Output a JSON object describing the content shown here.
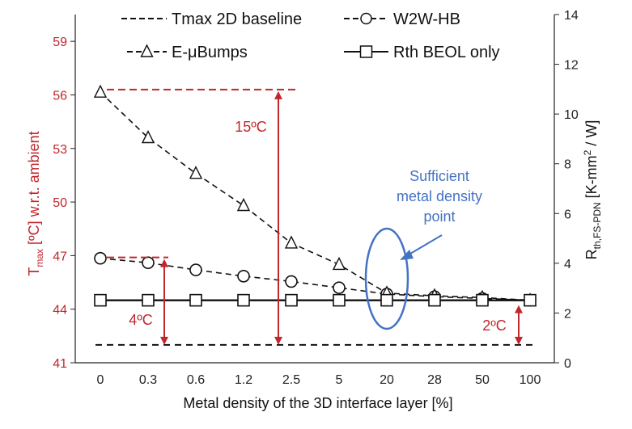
{
  "chart_data": {
    "type": "line",
    "xlabel": "Metal density of the 3D interface layer [%]",
    "categories": [
      "0",
      "0.3",
      "0.6",
      "1.2",
      "2.5",
      "5",
      "20",
      "28",
      "50",
      "100"
    ],
    "left_axis": {
      "label": "Tmax [ºC] w.r.t. ambient",
      "label_main": "T",
      "label_sub": "max",
      "label_rest": " [ºC] w.r.t. ambient",
      "ylim": [
        41,
        60.5
      ],
      "ticks": [
        41,
        44,
        47,
        50,
        53,
        56,
        59
      ],
      "color": "#c0272d"
    },
    "right_axis": {
      "label": "Rth,FS-PDN [K-mm2 / W]",
      "label_main": "R",
      "label_sub": "th,FS-PDN",
      "label_rest1": " [K-mm",
      "label_sup": "2",
      "label_rest2": " / W]",
      "ylim": [
        0,
        14
      ],
      "ticks": [
        0,
        2,
        4,
        6,
        8,
        10,
        12,
        14
      ]
    },
    "series": [
      {
        "name": "Tmax 2D baseline",
        "marker": "none",
        "line": "dashed",
        "axis": "left",
        "values": [
          42,
          42,
          42,
          42,
          42,
          42,
          42,
          42,
          42,
          42
        ]
      },
      {
        "name": "W2W-HB",
        "marker": "circle",
        "line": "dashed",
        "axis": "left",
        "values": [
          46.85,
          46.6,
          46.2,
          45.85,
          45.55,
          45.2,
          44.85,
          44.7,
          44.6,
          44.5
        ]
      },
      {
        "name": "E-μBumps",
        "marker": "triangle",
        "line": "dashed",
        "axis": "left",
        "values": [
          56.15,
          53.6,
          51.6,
          49.8,
          47.7,
          46.5,
          44.9,
          44.75,
          44.65,
          44.5
        ]
      },
      {
        "name": "Rth BEOL only",
        "marker": "square",
        "line": "solid",
        "axis": "left",
        "values": [
          44.5,
          44.5,
          44.5,
          44.5,
          44.5,
          44.5,
          44.5,
          44.5,
          44.5,
          44.5
        ]
      }
    ],
    "legend": {
      "items": [
        {
          "label": "Tmax 2D baseline",
          "style": "dashed-none"
        },
        {
          "label": "W2W-HB",
          "style": "dashed-circle"
        },
        {
          "label": "E-μBumps",
          "style": "dashed-triangle"
        },
        {
          "label": "Rth BEOL only",
          "style": "solid-square"
        }
      ],
      "placement": "top"
    },
    "annotations": {
      "delta_15": {
        "text": "15ºC",
        "at_index": 4,
        "from": 56.3,
        "to": 42
      },
      "delta_4": {
        "text": "4ºC",
        "at_index": 1.4,
        "from": 46.9,
        "to": 42
      },
      "delta_2": {
        "text": "2ºC",
        "at_index": 8.8,
        "from": 44.5,
        "to": 42
      },
      "sufficient": {
        "lines": [
          "Sufficient",
          "metal density",
          "point"
        ],
        "at_index": 6
      }
    },
    "colors": {
      "accent": "#c0272d",
      "callout": "#4472c4",
      "axis": "#222222"
    }
  }
}
